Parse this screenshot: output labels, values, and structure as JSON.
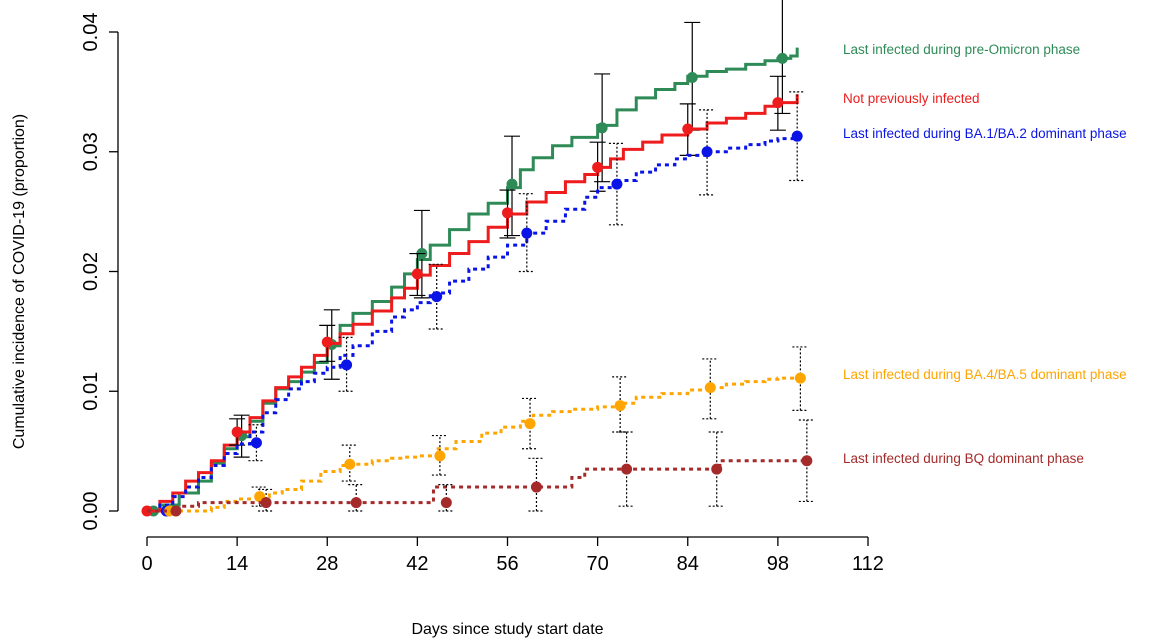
{
  "chart_data": {
    "type": "line",
    "xlabel": "Days since study start date",
    "ylabel": "Cumulative incidence of COVID-19 (proportion)",
    "xlim": [
      0,
      112
    ],
    "ylim": [
      0,
      0.04
    ],
    "x_ticks": [
      0,
      14,
      28,
      42,
      56,
      70,
      84,
      98,
      112
    ],
    "y_ticks": [
      0.0,
      0.01,
      0.02,
      0.03,
      0.04
    ],
    "x_tick_labels": [
      "0",
      "14",
      "28",
      "42",
      "56",
      "70",
      "84",
      "98",
      "112"
    ],
    "y_tick_labels": [
      "0.00",
      "0.01",
      "0.02",
      "0.03",
      "0.04"
    ],
    "grid": false,
    "legend_placement": "right, labels next to line ends",
    "series": [
      {
        "name": "Last infected during pre-Omicron phase",
        "color": "#2e8b57",
        "linestyle": "solid",
        "curve": [
          [
            0,
            0
          ],
          [
            2,
            0.0005
          ],
          [
            5,
            0.0015
          ],
          [
            8,
            0.0025
          ],
          [
            10,
            0.004
          ],
          [
            12,
            0.0052
          ],
          [
            14,
            0.0062
          ],
          [
            16,
            0.0075
          ],
          [
            18,
            0.009
          ],
          [
            20,
            0.0102
          ],
          [
            22,
            0.0108
          ],
          [
            24,
            0.0116
          ],
          [
            26,
            0.0124
          ],
          [
            28,
            0.0138
          ],
          [
            30,
            0.0155
          ],
          [
            32,
            0.0165
          ],
          [
            35,
            0.0175
          ],
          [
            38,
            0.0187
          ],
          [
            40,
            0.0198
          ],
          [
            42,
            0.021
          ],
          [
            44,
            0.0222
          ],
          [
            47,
            0.0235
          ],
          [
            50,
            0.0248
          ],
          [
            53,
            0.0257
          ],
          [
            56,
            0.027
          ],
          [
            58,
            0.0285
          ],
          [
            60,
            0.0295
          ],
          [
            63,
            0.0305
          ],
          [
            66,
            0.0312
          ],
          [
            70,
            0.0322
          ],
          [
            73,
            0.0335
          ],
          [
            76,
            0.0345
          ],
          [
            79,
            0.0352
          ],
          [
            82,
            0.0357
          ],
          [
            84,
            0.0363
          ],
          [
            87,
            0.0367
          ],
          [
            90,
            0.0369
          ],
          [
            93,
            0.0373
          ],
          [
            96,
            0.0376
          ],
          [
            98,
            0.0378
          ],
          [
            100,
            0.038
          ],
          [
            101,
            0.0387
          ]
        ],
        "points": [
          {
            "x": 1,
            "y": 0.0,
            "lo": 0.0,
            "hi": 0.0
          },
          {
            "x": 14.7,
            "y": 0.0063,
            "lo": 0.0045,
            "hi": 0.008
          },
          {
            "x": 28.7,
            "y": 0.0139,
            "lo": 0.011,
            "hi": 0.0168
          },
          {
            "x": 42.7,
            "y": 0.0215,
            "lo": 0.0178,
            "hi": 0.0251
          },
          {
            "x": 56.7,
            "y": 0.0273,
            "lo": 0.023,
            "hi": 0.0313
          },
          {
            "x": 70.7,
            "y": 0.032,
            "lo": 0.0275,
            "hi": 0.0365
          },
          {
            "x": 84.7,
            "y": 0.0362,
            "lo": 0.0318,
            "hi": 0.0408
          },
          {
            "x": 98.7,
            "y": 0.0378,
            "lo": 0.0332,
            "hi": 0.0428
          }
        ]
      },
      {
        "name": "Not previously infected",
        "color": "#ee1c1c",
        "linestyle": "solid",
        "curve": [
          [
            0,
            0
          ],
          [
            2,
            0.0008
          ],
          [
            4,
            0.0015
          ],
          [
            6,
            0.0025
          ],
          [
            8,
            0.0032
          ],
          [
            10,
            0.0042
          ],
          [
            12,
            0.0055
          ],
          [
            14,
            0.0066
          ],
          [
            16,
            0.0078
          ],
          [
            18,
            0.0092
          ],
          [
            20,
            0.0103
          ],
          [
            22,
            0.0112
          ],
          [
            24,
            0.012
          ],
          [
            26,
            0.013
          ],
          [
            28,
            0.014
          ],
          [
            30,
            0.0148
          ],
          [
            32,
            0.0156
          ],
          [
            35,
            0.0167
          ],
          [
            38,
            0.0178
          ],
          [
            40,
            0.0186
          ],
          [
            42,
            0.0197
          ],
          [
            44,
            0.0205
          ],
          [
            47,
            0.0215
          ],
          [
            50,
            0.0225
          ],
          [
            53,
            0.0237
          ],
          [
            56,
            0.0248
          ],
          [
            59,
            0.0258
          ],
          [
            62,
            0.0266
          ],
          [
            65,
            0.0275
          ],
          [
            68,
            0.0281
          ],
          [
            70,
            0.0287
          ],
          [
            72,
            0.0294
          ],
          [
            74,
            0.0302
          ],
          [
            77,
            0.0308
          ],
          [
            80,
            0.0314
          ],
          [
            84,
            0.0319
          ],
          [
            87,
            0.0324
          ],
          [
            90,
            0.0328
          ],
          [
            93,
            0.0332
          ],
          [
            96,
            0.0338
          ],
          [
            98,
            0.0341
          ],
          [
            101,
            0.0348
          ]
        ],
        "points": [
          {
            "x": 0,
            "y": 0.0,
            "lo": 0.0,
            "hi": 0.0
          },
          {
            "x": 14,
            "y": 0.0066,
            "lo": 0.0055,
            "hi": 0.0077
          },
          {
            "x": 28,
            "y": 0.0141,
            "lo": 0.0125,
            "hi": 0.0155
          },
          {
            "x": 42,
            "y": 0.0198,
            "lo": 0.018,
            "hi": 0.0215
          },
          {
            "x": 56,
            "y": 0.0249,
            "lo": 0.0228,
            "hi": 0.0268
          },
          {
            "x": 70,
            "y": 0.0287,
            "lo": 0.0267,
            "hi": 0.0308
          },
          {
            "x": 84,
            "y": 0.0319,
            "lo": 0.0297,
            "hi": 0.034
          },
          {
            "x": 98,
            "y": 0.0341,
            "lo": 0.0318,
            "hi": 0.0363
          }
        ]
      },
      {
        "name": "Last infected during BA.1/BA.2 dominant phase",
        "color": "#0a14e6",
        "linestyle": "dashed",
        "curve": [
          [
            0,
            0
          ],
          [
            2,
            0.0005
          ],
          [
            4,
            0.0012
          ],
          [
            6,
            0.002
          ],
          [
            8,
            0.0028
          ],
          [
            10,
            0.0038
          ],
          [
            12,
            0.0048
          ],
          [
            14,
            0.0056
          ],
          [
            16,
            0.0066
          ],
          [
            18,
            0.0082
          ],
          [
            20,
            0.0093
          ],
          [
            22,
            0.0102
          ],
          [
            24,
            0.0108
          ],
          [
            26,
            0.0115
          ],
          [
            28,
            0.012
          ],
          [
            30,
            0.013
          ],
          [
            32,
            0.0138
          ],
          [
            35,
            0.015
          ],
          [
            38,
            0.0162
          ],
          [
            40,
            0.0168
          ],
          [
            42,
            0.0174
          ],
          [
            44,
            0.0182
          ],
          [
            47,
            0.0192
          ],
          [
            50,
            0.0202
          ],
          [
            53,
            0.0212
          ],
          [
            56,
            0.0222
          ],
          [
            59,
            0.0232
          ],
          [
            62,
            0.0242
          ],
          [
            65,
            0.0252
          ],
          [
            68,
            0.0262
          ],
          [
            70,
            0.027
          ],
          [
            73,
            0.0276
          ],
          [
            76,
            0.0283
          ],
          [
            79,
            0.0289
          ],
          [
            82,
            0.0294
          ],
          [
            84,
            0.0297
          ],
          [
            87,
            0.03
          ],
          [
            90,
            0.0303
          ],
          [
            93,
            0.0306
          ],
          [
            96,
            0.0309
          ],
          [
            98,
            0.0311
          ],
          [
            101,
            0.0315
          ]
        ],
        "points": [
          {
            "x": 3,
            "y": 0.0,
            "lo": 0.0,
            "hi": 0.0
          },
          {
            "x": 17,
            "y": 0.0057,
            "lo": 0.0042,
            "hi": 0.0072
          },
          {
            "x": 31,
            "y": 0.0122,
            "lo": 0.01,
            "hi": 0.0145
          },
          {
            "x": 45,
            "y": 0.0179,
            "lo": 0.0152,
            "hi": 0.0206
          },
          {
            "x": 59,
            "y": 0.0232,
            "lo": 0.02,
            "hi": 0.0265
          },
          {
            "x": 73,
            "y": 0.0273,
            "lo": 0.0239,
            "hi": 0.0307
          },
          {
            "x": 87,
            "y": 0.03,
            "lo": 0.0264,
            "hi": 0.0335
          },
          {
            "x": 101,
            "y": 0.0313,
            "lo": 0.0276,
            "hi": 0.035
          }
        ]
      },
      {
        "name": "Last infected during BA.4/BA.5 dominant phase",
        "color": "#ffa500",
        "linestyle": "dashed",
        "curve": [
          [
            0,
            0
          ],
          [
            10,
            0.0003
          ],
          [
            12,
            0.0008
          ],
          [
            14,
            0.001
          ],
          [
            17,
            0.0012
          ],
          [
            19,
            0.0015
          ],
          [
            21,
            0.0018
          ],
          [
            24,
            0.0025
          ],
          [
            27,
            0.0033
          ],
          [
            30,
            0.0038
          ],
          [
            32,
            0.0039
          ],
          [
            35,
            0.0042
          ],
          [
            38,
            0.0044
          ],
          [
            40,
            0.0045
          ],
          [
            42,
            0.0046
          ],
          [
            45,
            0.0052
          ],
          [
            48,
            0.0058
          ],
          [
            52,
            0.0065
          ],
          [
            55,
            0.007
          ],
          [
            58,
            0.0075
          ],
          [
            60,
            0.008
          ],
          [
            63,
            0.0083
          ],
          [
            66,
            0.0085
          ],
          [
            70,
            0.0087
          ],
          [
            73,
            0.009
          ],
          [
            76,
            0.0095
          ],
          [
            80,
            0.0098
          ],
          [
            84,
            0.0101
          ],
          [
            87,
            0.0103
          ],
          [
            90,
            0.0106
          ],
          [
            93,
            0.0108
          ],
          [
            96,
            0.011
          ],
          [
            98,
            0.0111
          ],
          [
            101,
            0.0112
          ]
        ],
        "points": [
          {
            "x": 3.5,
            "y": 0.0,
            "lo": 0.0,
            "hi": 0.0
          },
          {
            "x": 17.5,
            "y": 0.0012,
            "lo": 0.0004,
            "hi": 0.002
          },
          {
            "x": 31.5,
            "y": 0.0039,
            "lo": 0.0025,
            "hi": 0.0055
          },
          {
            "x": 45.5,
            "y": 0.0046,
            "lo": 0.003,
            "hi": 0.0063
          },
          {
            "x": 59.5,
            "y": 0.0073,
            "lo": 0.0052,
            "hi": 0.0094
          },
          {
            "x": 73.5,
            "y": 0.0088,
            "lo": 0.0066,
            "hi": 0.0112
          },
          {
            "x": 87.5,
            "y": 0.0103,
            "lo": 0.0077,
            "hi": 0.0127
          },
          {
            "x": 101.5,
            "y": 0.0111,
            "lo": 0.0084,
            "hi": 0.0137
          }
        ]
      },
      {
        "name": "Last infected during BQ dominant phase",
        "color": "#a52a2a",
        "linestyle": "dashed",
        "curve": [
          [
            0,
            0
          ],
          [
            5,
            0.0004
          ],
          [
            8,
            0.0007
          ],
          [
            19,
            0.0007
          ],
          [
            21,
            0.0007
          ],
          [
            33,
            0.0007
          ],
          [
            44,
            0.0007
          ],
          [
            44.5,
            0.002
          ],
          [
            61,
            0.002
          ],
          [
            63,
            0.002
          ],
          [
            66,
            0.0028
          ],
          [
            68,
            0.0035
          ],
          [
            88,
            0.0035
          ],
          [
            89,
            0.0042
          ],
          [
            102,
            0.0042
          ]
        ],
        "points": [
          {
            "x": 4.5,
            "y": 0.0,
            "lo": 0.0,
            "hi": 0.0
          },
          {
            "x": 18.5,
            "y": 0.0007,
            "lo": 0.0,
            "hi": 0.0018
          },
          {
            "x": 32.5,
            "y": 0.0007,
            "lo": 0.0,
            "hi": 0.0022
          },
          {
            "x": 46.5,
            "y": 0.0007,
            "lo": 0.0,
            "hi": 0.0022
          },
          {
            "x": 60.5,
            "y": 0.002,
            "lo": 0.0,
            "hi": 0.0044
          },
          {
            "x": 74.5,
            "y": 0.0035,
            "lo": 0.0004,
            "hi": 0.0066
          },
          {
            "x": 88.5,
            "y": 0.0035,
            "lo": 0.0004,
            "hi": 0.0066
          },
          {
            "x": 102.5,
            "y": 0.0042,
            "lo": 0.0008,
            "hi": 0.0076
          }
        ]
      }
    ]
  }
}
